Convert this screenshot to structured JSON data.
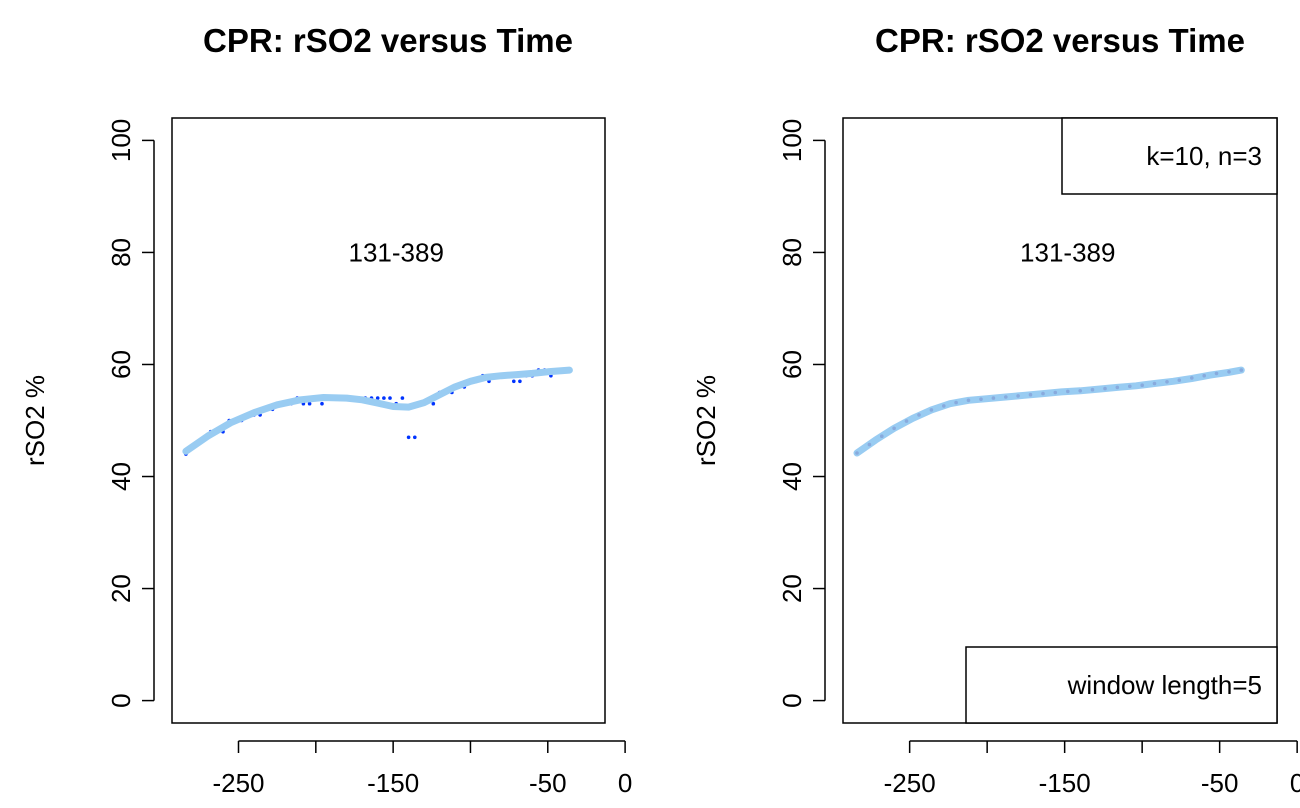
{
  "chart_data": [
    {
      "type": "scatter",
      "title": "CPR: rSO2 versus Time",
      "xlabel": "",
      "ylabel": "rSO2 %",
      "xlim": [
        -293,
        -13
      ],
      "ylim": [
        -4,
        104
      ],
      "x_ticks": [
        -250,
        -200,
        -150,
        -100,
        -50,
        0
      ],
      "x_tick_labels": [
        "-250",
        "",
        "-150",
        "",
        "-50",
        "0"
      ],
      "y_ticks": [
        0,
        20,
        40,
        60,
        80,
        100
      ],
      "y_tick_labels": [
        "0",
        "20",
        "40",
        "60",
        "80",
        "100"
      ],
      "annotation": "131-389",
      "annotation_pos": {
        "x": -148,
        "y": 80
      },
      "legends": [],
      "colors": {
        "points": "#0033ff",
        "curve": "#99ccf2"
      },
      "series": [
        {
          "kind": "points",
          "color": "#0033ff",
          "x": [
            -284,
            -280,
            -276,
            -272,
            -268,
            -264,
            -260,
            -256,
            -252,
            -248,
            -244,
            -240,
            -236,
            -232,
            -228,
            -224,
            -220,
            -216,
            -212,
            -208,
            -204,
            -200,
            -196,
            -192,
            -188,
            -184,
            -180,
            -176,
            -172,
            -168,
            -164,
            -160,
            -156,
            -152,
            -148,
            -144,
            -140,
            -136,
            -132,
            -124,
            -120,
            -116,
            -112,
            -108,
            -104,
            -100,
            -96,
            -92,
            -88,
            -84,
            -80,
            -76,
            -72,
            -68,
            -64,
            -60,
            -56,
            -52,
            -48,
            -44,
            -40,
            -36
          ],
          "y": [
            44,
            45,
            46,
            47,
            48,
            48,
            48,
            50,
            50,
            50,
            51,
            51,
            51,
            52,
            52,
            53,
            53,
            53,
            54,
            53,
            53,
            54,
            53,
            54,
            54,
            54,
            54,
            54,
            54,
            54,
            54,
            54,
            54,
            54,
            53,
            54,
            47,
            47,
            53,
            53,
            55,
            55,
            55,
            56,
            56,
            57,
            57,
            58,
            57,
            58,
            58,
            58,
            57,
            57,
            58,
            58,
            59,
            59,
            58,
            59,
            59,
            59
          ]
        },
        {
          "kind": "line",
          "color": "#99ccf2",
          "x": [
            -284,
            -270,
            -255,
            -240,
            -225,
            -210,
            -195,
            -180,
            -170,
            -160,
            -150,
            -140,
            -130,
            -120,
            -110,
            -100,
            -90,
            -80,
            -70,
            -60,
            -50,
            -36
          ],
          "y": [
            44.5,
            47.2,
            49.6,
            51.4,
            52.8,
            53.7,
            54.1,
            54.0,
            53.7,
            53.1,
            52.5,
            52.4,
            53.2,
            54.6,
            56.0,
            57.0,
            57.7,
            58.0,
            58.2,
            58.4,
            58.7,
            59.0
          ]
        }
      ]
    },
    {
      "type": "scatter",
      "title": "CPR: rSO2 versus Time",
      "xlabel": "",
      "ylabel": "rSO2 %",
      "xlim": [
        -293,
        -13
      ],
      "ylim": [
        -4,
        104
      ],
      "x_ticks": [
        -250,
        -200,
        -150,
        -100,
        -50,
        0
      ],
      "x_tick_labels": [
        "-250",
        "",
        "-150",
        "",
        "-50",
        "0"
      ],
      "y_ticks": [
        0,
        20,
        40,
        60,
        80,
        100
      ],
      "y_tick_labels": [
        "0",
        "20",
        "40",
        "60",
        "80",
        "100"
      ],
      "annotation": "131-389",
      "annotation_pos": {
        "x": -148,
        "y": 80
      },
      "legends": [
        {
          "text": "k=10, n=3",
          "position": "top-right"
        },
        {
          "text": "window length=5",
          "position": "bottom-right"
        }
      ],
      "colors": {
        "points": "#88aadd",
        "curve": "#99ccf2"
      },
      "series": [
        {
          "kind": "line",
          "color": "#99ccf2",
          "x": [
            -284,
            -272,
            -260,
            -248,
            -236,
            -224,
            -212,
            -200,
            -188,
            -176,
            -164,
            -152,
            -140,
            -128,
            -116,
            -104,
            -92,
            -80,
            -68,
            -56,
            -44,
            -36
          ],
          "y": [
            44.2,
            46.5,
            48.6,
            50.4,
            51.9,
            53.0,
            53.6,
            53.9,
            54.2,
            54.5,
            54.8,
            55.1,
            55.3,
            55.6,
            55.9,
            56.2,
            56.6,
            57.0,
            57.5,
            58.1,
            58.6,
            59.0
          ]
        },
        {
          "kind": "points",
          "color": "#88aadd",
          "x": [
            -284,
            -276,
            -268,
            -260,
            -252,
            -244,
            -236,
            -228,
            -220,
            -212,
            -204,
            -196,
            -188,
            -180,
            -172,
            -164,
            -156,
            -148,
            -140,
            -132,
            -124,
            -116,
            -108,
            -100,
            -92,
            -84,
            -76,
            -68,
            -60,
            -52,
            -44,
            -36
          ],
          "y": [
            44.2,
            45.7,
            47.2,
            48.6,
            49.9,
            51.0,
            51.9,
            52.6,
            53.2,
            53.6,
            53.8,
            54.0,
            54.2,
            54.4,
            54.6,
            54.8,
            55.0,
            55.2,
            55.3,
            55.5,
            55.7,
            55.9,
            56.1,
            56.3,
            56.6,
            56.9,
            57.2,
            57.6,
            58.0,
            58.4,
            58.7,
            59.0
          ]
        }
      ]
    }
  ]
}
